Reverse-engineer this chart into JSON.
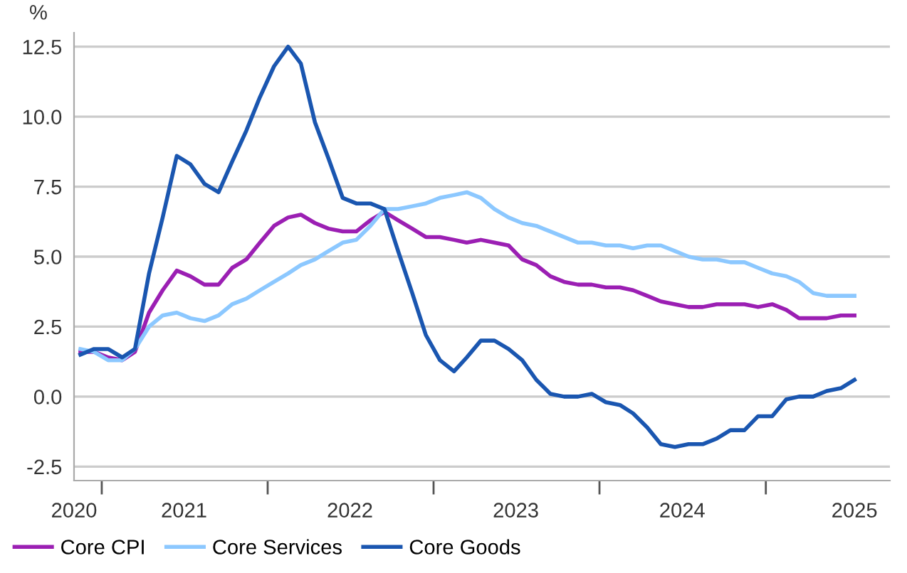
{
  "chart_data": {
    "type": "line",
    "ylabel": "%",
    "x": [
      "2020-11-15",
      "2020-12-15",
      "2021-01-15",
      "2021-02-15",
      "2021-03-15",
      "2021-04-15",
      "2021-05-15",
      "2021-06-15",
      "2021-07-15",
      "2021-08-15",
      "2021-09-15",
      "2021-10-15",
      "2021-11-15",
      "2021-12-15",
      "2022-01-15",
      "2022-02-15",
      "2022-03-15",
      "2022-04-15",
      "2022-05-15",
      "2022-06-15",
      "2022-07-15",
      "2022-08-15",
      "2022-09-15",
      "2022-10-15",
      "2022-11-15",
      "2022-12-15",
      "2023-01-15",
      "2023-02-15",
      "2023-03-15",
      "2023-04-15",
      "2023-05-15",
      "2023-06-15",
      "2023-07-15",
      "2023-08-15",
      "2023-09-15",
      "2023-10-15",
      "2023-11-15",
      "2023-12-15",
      "2024-01-15",
      "2024-02-15",
      "2024-03-15",
      "2024-04-15",
      "2024-05-15",
      "2024-06-15",
      "2024-07-15",
      "2024-08-15",
      "2024-09-15",
      "2024-10-15",
      "2024-11-15",
      "2024-12-15",
      "2025-01-15",
      "2025-02-15",
      "2025-03-15",
      "2025-04-15",
      "2025-05-15",
      "2025-06-15",
      "2025-07-15"
    ],
    "series": [
      {
        "name": "Core CPI",
        "color": "#9b1fb3",
        "values": [
          1.6,
          1.6,
          1.4,
          1.3,
          1.6,
          3.0,
          3.8,
          4.5,
          4.3,
          4.0,
          4.0,
          4.6,
          4.9,
          5.5,
          6.1,
          6.4,
          6.5,
          6.2,
          6.0,
          5.9,
          5.9,
          6.3,
          6.6,
          6.3,
          6.0,
          5.7,
          5.7,
          5.6,
          5.5,
          5.6,
          5.5,
          5.4,
          4.9,
          4.7,
          4.3,
          4.1,
          4.0,
          4.0,
          3.9,
          3.9,
          3.8,
          3.6,
          3.4,
          3.3,
          3.2,
          3.2,
          3.3,
          3.3,
          3.3,
          3.2,
          3.3,
          3.1,
          2.8,
          2.8,
          2.8,
          2.9,
          2.9
        ]
      },
      {
        "name": "Core Services",
        "color": "#8cc8ff",
        "values": [
          1.7,
          1.6,
          1.3,
          1.3,
          1.7,
          2.5,
          2.9,
          3.0,
          2.8,
          2.7,
          2.9,
          3.3,
          3.5,
          3.8,
          4.1,
          4.4,
          4.7,
          4.9,
          5.2,
          5.5,
          5.6,
          6.1,
          6.7,
          6.7,
          6.8,
          6.9,
          7.1,
          7.2,
          7.3,
          7.1,
          6.7,
          6.4,
          6.2,
          6.1,
          5.9,
          5.7,
          5.5,
          5.5,
          5.4,
          5.4,
          5.3,
          5.4,
          5.4,
          5.2,
          5.0,
          4.9,
          4.9,
          4.8,
          4.8,
          4.6,
          4.4,
          4.3,
          4.1,
          3.7,
          3.6,
          3.6,
          3.6
        ]
      },
      {
        "name": "Core Goods",
        "color": "#1a56b0",
        "values": [
          1.5,
          1.7,
          1.7,
          1.4,
          1.7,
          4.4,
          6.4,
          8.6,
          8.3,
          7.6,
          7.3,
          8.4,
          9.5,
          10.7,
          11.8,
          12.5,
          11.9,
          9.8,
          8.5,
          7.1,
          6.9,
          6.9,
          6.7,
          5.2,
          3.7,
          2.2,
          1.3,
          0.9,
          1.4,
          2.0,
          2.0,
          1.7,
          1.3,
          0.6,
          0.1,
          0.0,
          0.0,
          0.1,
          -0.2,
          -0.3,
          -0.6,
          -1.1,
          -1.7,
          -1.8,
          -1.7,
          -1.7,
          -1.5,
          -1.2,
          -1.2,
          -0.7,
          -0.7,
          -0.1,
          0.0,
          0.0,
          0.2,
          0.3,
          0.6
        ]
      }
    ],
    "xlim": [
      "2020-11-01",
      "2025-10-01"
    ],
    "xticks": [
      {
        "value": "2020-11-01",
        "label": "2020"
      },
      {
        "value": "2021-01-01",
        "label": null
      },
      {
        "value": "2021-07-01",
        "label": "2021"
      },
      {
        "value": "2022-01-01",
        "label": null
      },
      {
        "value": "2022-07-01",
        "label": "2022"
      },
      {
        "value": "2023-01-01",
        "label": null
      },
      {
        "value": "2023-07-01",
        "label": "2023"
      },
      {
        "value": "2024-01-01",
        "label": null
      },
      {
        "value": "2024-07-01",
        "label": "2024"
      },
      {
        "value": "2025-01-01",
        "label": null
      },
      {
        "value": "2025-07-15",
        "label": "2025"
      }
    ],
    "ylim": [
      -3,
      13
    ],
    "yticks": [
      {
        "value": -2.5,
        "label": "-2.5"
      },
      {
        "value": 0,
        "label": "0.0"
      },
      {
        "value": 2.5,
        "label": "2.5"
      },
      {
        "value": 5,
        "label": "5.0"
      },
      {
        "value": 7.5,
        "label": "7.5"
      },
      {
        "value": 10,
        "label": "10.0"
      },
      {
        "value": 12.5,
        "label": "12.5"
      }
    ],
    "grid": "y",
    "legend": "bottom left",
    "marker": "none",
    "line_style": "solid"
  }
}
